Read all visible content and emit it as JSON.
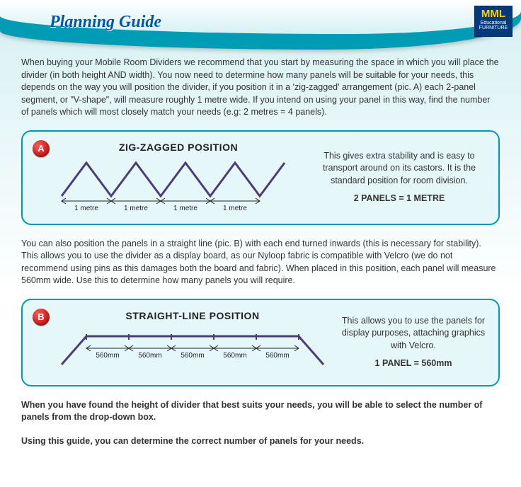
{
  "header": {
    "title": "Planning Guide",
    "logo": {
      "brand": "MML",
      "line1": "Educational",
      "line2": "FURNITURE"
    }
  },
  "intro": "When buying your Mobile Room Dividers we recommend that you start by measuring the space in which you will place the divider (in both height AND width). You now need to determine how many panels will be suitable for your needs, this depends on the way you will position the divider, if you position it in a 'zig-zagged' arrangement (pic. A) each 2-panel segment, or \"V-shape\", will measure roughly 1 metre wide. If you intend on using your panel in this way, find the number of panels which will most closely match your needs (e.g: 2 metres = 4 panels).",
  "sectionA": {
    "badge": "A",
    "title": "ZIG-ZAGGED POSITION",
    "measure_label": "1 metre",
    "desc": "This gives extra stability and is easy to transport around on its castors. It is the standard position for room division.",
    "rule": "2 PANELS = 1 METRE",
    "line_color": "#4b3d7a",
    "arrow_color": "#222222"
  },
  "mid": "You can also position the panels in a straight line (pic. B) with each end turned inwards (this is necessary for stability). This allows you to use the divider as a display board, as our Nyloop fabric is compatible with Velcro (we do not recommend using pins as this damages both the board and fabric). When placed in this position, each panel will measure 560mm wide. Use this to determine how many panels you will require.",
  "sectionB": {
    "badge": "B",
    "title": "STRAIGHT-LINE POSITION",
    "measure_label": "560mm",
    "desc": "This allows you to use the panels for display purposes, attaching graphics with Velcro.",
    "rule": "1 PANEL = 560mm",
    "line_color": "#4b3d7a",
    "arrow_color": "#222222"
  },
  "outro1": "When you have found the height of divider that best suits your needs, you will be able to select the number of panels from the drop-down box.",
  "outro2": "Using this guide, you can determine the correct number of panels for your needs."
}
